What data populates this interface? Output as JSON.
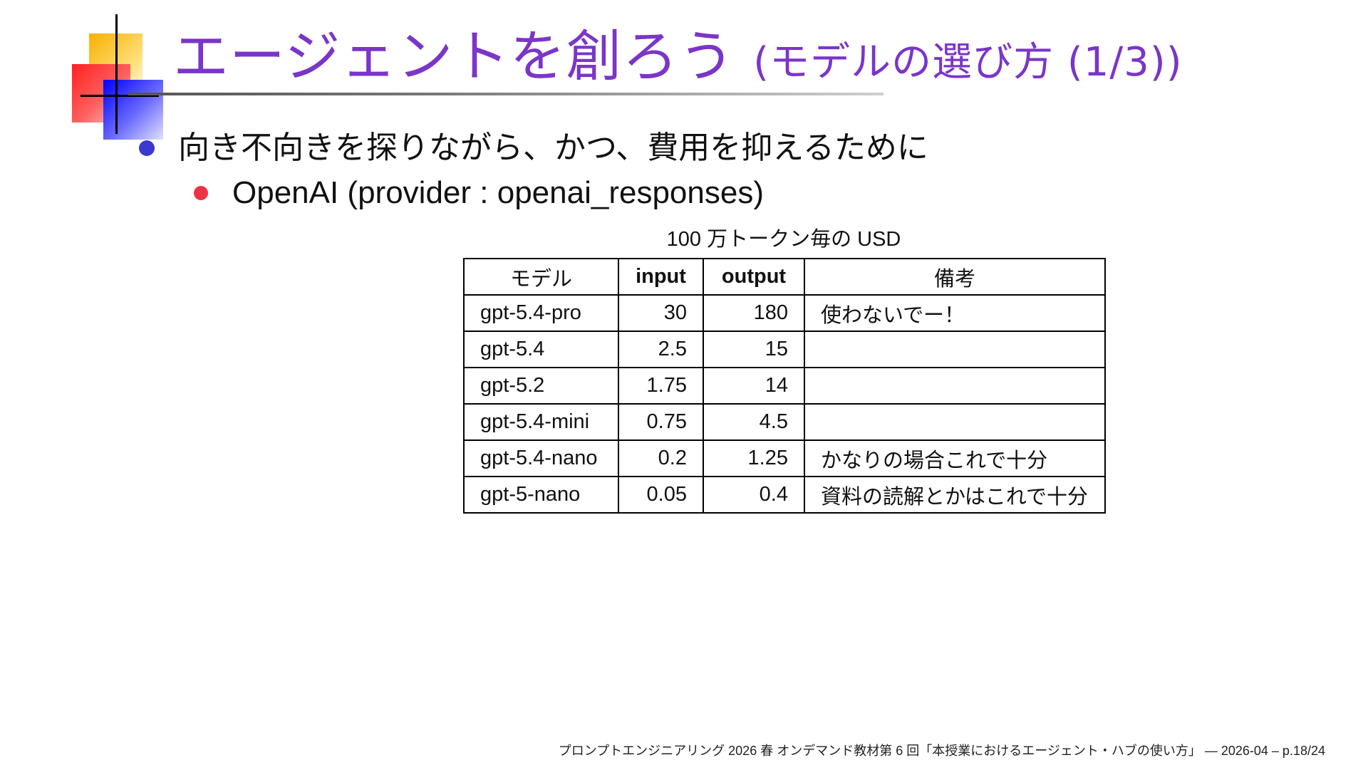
{
  "slide": {
    "title_main": "エージェントを創ろう",
    "title_sub": "(モデルの選び方 (1/3))",
    "bullet_1": "向き不向きを探りながら、かつ、費用を抑えるために",
    "bullet_2": "OpenAI (provider : openai_responses)",
    "table_caption": "100 万トークン毎の USD",
    "footer": "プロンプトエンジニアリング 2026 春 オンデマンド教材第 6 回「本授業におけるエージェント・ハブの使い方」 — 2026-04 – p.18/24"
  },
  "table": {
    "headers": {
      "model": "モデル",
      "input": "input",
      "output": "output",
      "note": "備考"
    },
    "rows": [
      {
        "model": "gpt-5.4-pro",
        "input": "30",
        "output": "180",
        "note": "使わないでー！"
      },
      {
        "model": "gpt-5.4",
        "input": "2.5",
        "output": "15",
        "note": ""
      },
      {
        "model": "gpt-5.2",
        "input": "1.75",
        "output": "14",
        "note": ""
      },
      {
        "model": "gpt-5.4-mini",
        "input": "0.75",
        "output": "4.5",
        "note": ""
      },
      {
        "model": "gpt-5.4-nano",
        "input": "0.2",
        "output": "1.25",
        "note": "かなりの場合これで十分"
      },
      {
        "model": "gpt-5-nano",
        "input": "0.05",
        "output": "0.4",
        "note": "資料の読解とかはこれで十分"
      }
    ]
  },
  "colors": {
    "title": "#7a35c9",
    "bullet_level_1": "#3a3ad0",
    "bullet_level_2": "#ee3344"
  }
}
